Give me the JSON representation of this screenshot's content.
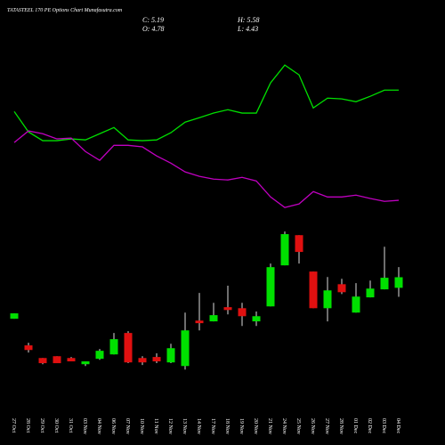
{
  "chart_data": {
    "type": "candlestick",
    "title": "TATASTEEL 170 PE Options Chart Munafasutra.com",
    "ohlc_labels": [
      "C: 5.19",
      "H: 5.58",
      "O: 4.78",
      "L: 4.43"
    ],
    "categories": [
      "27 Oct",
      "28 Oct",
      "29 Oct",
      "30 Oct",
      "31 Oct",
      "03 Nov",
      "04 Nov",
      "06 Nov",
      "07 Nov",
      "10 Nov",
      "11 Nov",
      "12 Nov",
      "13 Nov",
      "14 Nov",
      "17 Nov",
      "18 Nov",
      "19 Nov",
      "20 Nov",
      "21 Nov",
      "24 Nov",
      "25 Nov",
      "26 Nov",
      "27 Nov",
      "28 Nov",
      "01 Dec",
      "02 Dec",
      "03 Dec",
      "04 Dec"
    ],
    "open": [
      3.58,
      2.55,
      2.06,
      2.13,
      2.06,
      1.82,
      2.03,
      2.2,
      3.03,
      2.06,
      2.1,
      1.89,
      1.75,
      3.51,
      3.48,
      4.03,
      3.99,
      3.48,
      4.06,
      5.65,
      6.82,
      5.41,
      3.99,
      4.92,
      3.82,
      4.41,
      4.72,
      4.78
    ],
    "high": [
      3.79,
      2.65,
      2.06,
      2.13,
      2.1,
      1.93,
      2.41,
      3.03,
      3.1,
      2.13,
      2.24,
      2.61,
      3.82,
      4.58,
      4.2,
      4.86,
      4.2,
      3.86,
      5.72,
      6.96,
      6.82,
      5.41,
      5.2,
      5.13,
      4.96,
      5.06,
      6.37,
      5.58
    ],
    "low": [
      3.58,
      2.27,
      1.82,
      1.86,
      1.93,
      1.75,
      1.99,
      2.2,
      1.86,
      1.79,
      1.86,
      1.86,
      1.61,
      3.13,
      3.48,
      3.75,
      3.3,
      3.3,
      4.06,
      5.65,
      5.72,
      3.99,
      3.48,
      4.54,
      3.82,
      4.41,
      4.72,
      4.43
    ],
    "close": [
      3.79,
      2.37,
      1.86,
      1.86,
      1.93,
      1.93,
      2.34,
      2.79,
      1.89,
      1.89,
      1.93,
      2.44,
      3.13,
      3.41,
      3.72,
      3.92,
      3.68,
      3.68,
      5.58,
      6.86,
      6.17,
      3.99,
      4.68,
      4.61,
      4.44,
      4.75,
      5.17,
      5.19
    ],
    "up_color": "#00e000",
    "down_color": "#e01010",
    "lines": [
      {
        "color": "#00e000",
        "values": [
          11.61,
          10.82,
          10.48,
          10.48,
          10.55,
          10.51,
          10.75,
          10.99,
          10.51,
          10.48,
          10.51,
          10.79,
          11.2,
          11.37,
          11.55,
          11.68,
          11.55,
          11.55,
          12.72,
          13.41,
          13.03,
          11.75,
          12.13,
          12.1,
          11.99,
          12.2,
          12.44,
          12.44
        ]
      },
      {
        "color": "#c000c0",
        "values": [
          10.41,
          10.86,
          10.75,
          10.55,
          10.58,
          10.06,
          9.72,
          10.3,
          10.3,
          10.24,
          9.89,
          9.61,
          9.27,
          9.1,
          8.99,
          8.96,
          9.06,
          8.92,
          8.3,
          7.89,
          8.03,
          8.51,
          8.3,
          8.3,
          8.37,
          8.24,
          8.13,
          8.17
        ]
      }
    ],
    "ylim": [
      0,
      15
    ]
  }
}
